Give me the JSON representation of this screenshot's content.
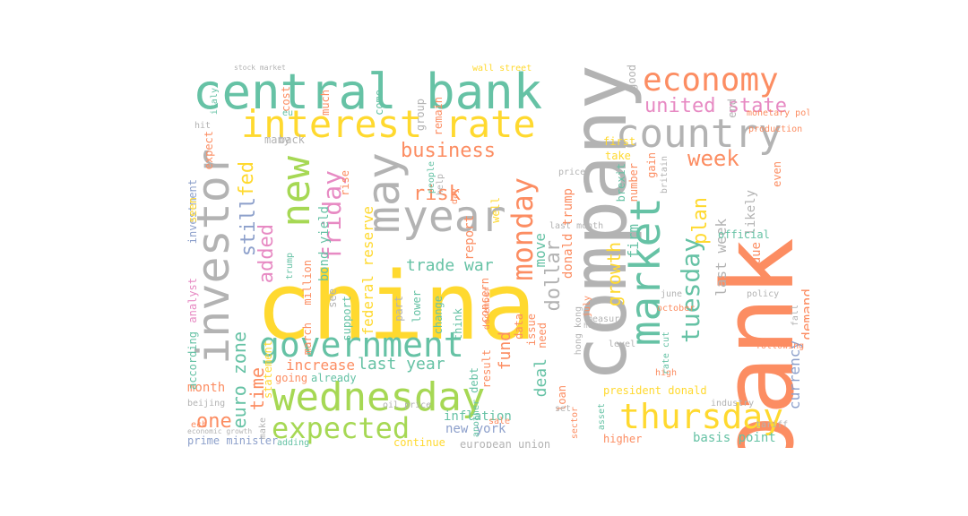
{
  "palette": {
    "green": "#66c2a5",
    "orange": "#fc8d62",
    "blue": "#8da0cb",
    "pink": "#e78ac3",
    "lime": "#a6d854",
    "yellow": "#ffd92f",
    "gray": "#b3b3b3"
  },
  "words": [
    {
      "text": "china",
      "color": "#ffd92f"
    },
    {
      "text": "company",
      "color": "#b3b3b3"
    },
    {
      "text": "bank",
      "color": "#fc8d62"
    },
    {
      "text": "central bank",
      "color": "#66c2a5"
    },
    {
      "text": "investor",
      "color": "#b3b3b3"
    },
    {
      "text": "wednesday",
      "color": "#a6d854"
    },
    {
      "text": "economy",
      "color": "#fc8d62"
    },
    {
      "text": "interest rate",
      "color": "#ffd92f"
    },
    {
      "text": "country",
      "color": "#b3b3b3"
    },
    {
      "text": "market",
      "color": "#66c2a5"
    },
    {
      "text": "government",
      "color": "#66c2a5"
    },
    {
      "text": "thursday",
      "color": "#ffd92f"
    },
    {
      "text": "new",
      "color": "#a6d854"
    },
    {
      "text": "may",
      "color": "#b3b3b3"
    },
    {
      "text": "year",
      "color": "#b3b3b3"
    },
    {
      "text": "expected",
      "color": "#a6d854"
    },
    {
      "text": "monday",
      "color": "#fc8d62"
    },
    {
      "text": "tuesday",
      "color": "#66c2a5"
    },
    {
      "text": "united state",
      "color": "#e78ac3"
    },
    {
      "text": "friday",
      "color": "#e78ac3"
    },
    {
      "text": "business",
      "color": "#fc8d62"
    },
    {
      "text": "week",
      "color": "#fc8d62"
    },
    {
      "text": "still",
      "color": "#8da0cb"
    },
    {
      "text": "fed",
      "color": "#ffd92f"
    },
    {
      "text": "added",
      "color": "#e78ac3"
    },
    {
      "text": "euro zone",
      "color": "#66c2a5"
    },
    {
      "text": "dollar",
      "color": "#b3b3b3"
    },
    {
      "text": "risk",
      "color": "#fc8d62"
    },
    {
      "text": "trade war",
      "color": "#66c2a5"
    },
    {
      "text": "last year",
      "color": "#66c2a5"
    },
    {
      "text": "plan",
      "color": "#ffd92f"
    },
    {
      "text": "growth",
      "color": "#ffd92f"
    },
    {
      "text": "last week",
      "color": "#b3b3b3"
    },
    {
      "text": "one",
      "color": "#fc8d62"
    },
    {
      "text": "time",
      "color": "#fc8d62"
    },
    {
      "text": "increase",
      "color": "#fc8d62"
    },
    {
      "text": "federal reserve",
      "color": "#ffd92f"
    },
    {
      "text": "bond yield",
      "color": "#66c2a5"
    },
    {
      "text": "basis point",
      "color": "#66c2a5"
    },
    {
      "text": "firm",
      "color": "#66c2a5"
    },
    {
      "text": "move",
      "color": "#66c2a5"
    },
    {
      "text": "fund",
      "color": "#fc8d62"
    },
    {
      "text": "deal",
      "color": "#66c2a5"
    },
    {
      "text": "currency",
      "color": "#8da0cb"
    },
    {
      "text": "demand",
      "color": "#fc8d62"
    },
    {
      "text": "including",
      "color": "#8da0cb"
    },
    {
      "text": "likely",
      "color": "#b3b3b3"
    },
    {
      "text": "due",
      "color": "#fc8d62"
    },
    {
      "text": "month",
      "color": "#fc8d62"
    },
    {
      "text": "report",
      "color": "#fc8d62"
    },
    {
      "text": "donald trump",
      "color": "#fc8d62"
    },
    {
      "text": "new york",
      "color": "#8da0cb"
    },
    {
      "text": "inflation",
      "color": "#66c2a5"
    },
    {
      "text": "president donald",
      "color": "#ffd92f"
    },
    {
      "text": "million",
      "color": "#fc8d62"
    },
    {
      "text": "march",
      "color": "#fc8d62"
    },
    {
      "text": "official",
      "color": "#66c2a5"
    },
    {
      "text": "investment",
      "color": "#8da0cb"
    },
    {
      "text": "analyst",
      "color": "#e78ac3"
    },
    {
      "text": "according",
      "color": "#66c2a5"
    },
    {
      "text": "prime minister",
      "color": "#8da0cb"
    },
    {
      "text": "continue",
      "color": "#ffd92f"
    },
    {
      "text": "european union",
      "color": "#b3b3b3"
    },
    {
      "text": "even",
      "color": "#fc8d62"
    },
    {
      "text": "data",
      "color": "#fc8d62"
    },
    {
      "text": "issue",
      "color": "#fc8d62"
    },
    {
      "text": "well",
      "color": "#ffd92f"
    },
    {
      "text": "see",
      "color": "#b3b3b3"
    },
    {
      "text": "rise",
      "color": "#fc8d62"
    },
    {
      "text": "support",
      "color": "#66c2a5"
    },
    {
      "text": "lower",
      "color": "#66c2a5"
    },
    {
      "text": "part",
      "color": "#b3b3b3"
    },
    {
      "text": "change",
      "color": "#66c2a5"
    },
    {
      "text": "concern",
      "color": "#fc8d62"
    },
    {
      "text": "think",
      "color": "#66c2a5"
    },
    {
      "text": "result",
      "color": "#fc8d62"
    },
    {
      "text": "loan",
      "color": "#fc8d62"
    },
    {
      "text": "need",
      "color": "#fc8d62"
    },
    {
      "text": "debt",
      "color": "#66c2a5"
    },
    {
      "text": "last month",
      "color": "#b3b3b3"
    },
    {
      "text": "first",
      "color": "#ffd92f"
    },
    {
      "text": "take",
      "color": "#ffd92f"
    },
    {
      "text": "brexit",
      "color": "#66c2a5"
    },
    {
      "text": "number",
      "color": "#fc8d62"
    },
    {
      "text": "gain",
      "color": "#fc8d62"
    },
    {
      "text": "industry",
      "color": "#b3b3b3"
    },
    {
      "text": "higher",
      "color": "#fc8d62"
    },
    {
      "text": "high",
      "color": "#fc8d62"
    },
    {
      "text": "group",
      "color": "#b3b3b3"
    },
    {
      "text": "people",
      "color": "#66c2a5"
    },
    {
      "text": "remain",
      "color": "#fc8d62"
    },
    {
      "text": "good",
      "color": "#b3b3b3"
    },
    {
      "text": "end",
      "color": "#b3b3b3"
    },
    {
      "text": "wall street",
      "color": "#ffd92f"
    },
    {
      "text": "stock market",
      "color": "#b3b3b3"
    },
    {
      "text": "much",
      "color": "#fc8d62"
    },
    {
      "text": "come",
      "color": "#66c2a5"
    },
    {
      "text": "cost",
      "color": "#fc8d62"
    },
    {
      "text": "many",
      "color": "#b3b3b3"
    },
    {
      "text": "back",
      "color": "#b3b3b3"
    },
    {
      "text": "expect",
      "color": "#fc8d62"
    },
    {
      "text": "seen",
      "color": "#ffd92f"
    },
    {
      "text": "statement",
      "color": "#ffd92f"
    },
    {
      "text": "going",
      "color": "#fc8d62"
    },
    {
      "text": "already",
      "color": "#66c2a5"
    },
    {
      "text": "adding",
      "color": "#66c2a5"
    },
    {
      "text": "sale",
      "color": "#fc8d62"
    },
    {
      "text": "december",
      "color": "#fc8d62"
    },
    {
      "text": "day",
      "color": "#fc8d62"
    },
    {
      "text": "help",
      "color": "#b3b3b3"
    },
    {
      "text": "price",
      "color": "#b3b3b3"
    },
    {
      "text": "level",
      "color": "#b3b3b3"
    },
    {
      "text": "june",
      "color": "#b3b3b3"
    },
    {
      "text": "october",
      "color": "#fc8d62"
    },
    {
      "text": "policy",
      "color": "#b3b3b3"
    },
    {
      "text": "following",
      "color": "#fc8d62"
    },
    {
      "text": "fall",
      "color": "#b3b3b3"
    },
    {
      "text": "britain",
      "color": "#b3b3b3"
    },
    {
      "text": "measure",
      "color": "#b3b3b3"
    },
    {
      "text": "rate cut",
      "color": "#66c2a5"
    },
    {
      "text": "hong kong",
      "color": "#b3b3b3"
    },
    {
      "text": "july",
      "color": "#fc8d62"
    },
    {
      "text": "economic growth",
      "color": "#b3b3b3"
    },
    {
      "text": "beijing",
      "color": "#b3b3b3"
    },
    {
      "text": "make",
      "color": "#b3b3b3"
    },
    {
      "text": "hit",
      "color": "#b3b3b3"
    },
    {
      "text": "italy",
      "color": "#66c2a5"
    },
    {
      "text": "set",
      "color": "#b3b3b3"
    },
    {
      "text": "another",
      "color": "#66c2a5"
    },
    {
      "text": "asset",
      "color": "#66c2a5"
    },
    {
      "text": "sector",
      "color": "#fc8d62"
    },
    {
      "text": "tariff",
      "color": "#b3b3b3"
    },
    {
      "text": "production",
      "color": "#fc8d62"
    },
    {
      "text": "monetary policy",
      "color": "#fc8d62"
    },
    {
      "text": "head",
      "color": "#b3b3b3"
    },
    {
      "text": "oil price",
      "color": "#b3b3b3"
    },
    {
      "text": "eu",
      "color": "#66c2a5"
    },
    {
      "text": "trump",
      "color": "#66c2a5"
    },
    {
      "text": "ecb",
      "color": "#fc8d62"
    }
  ]
}
